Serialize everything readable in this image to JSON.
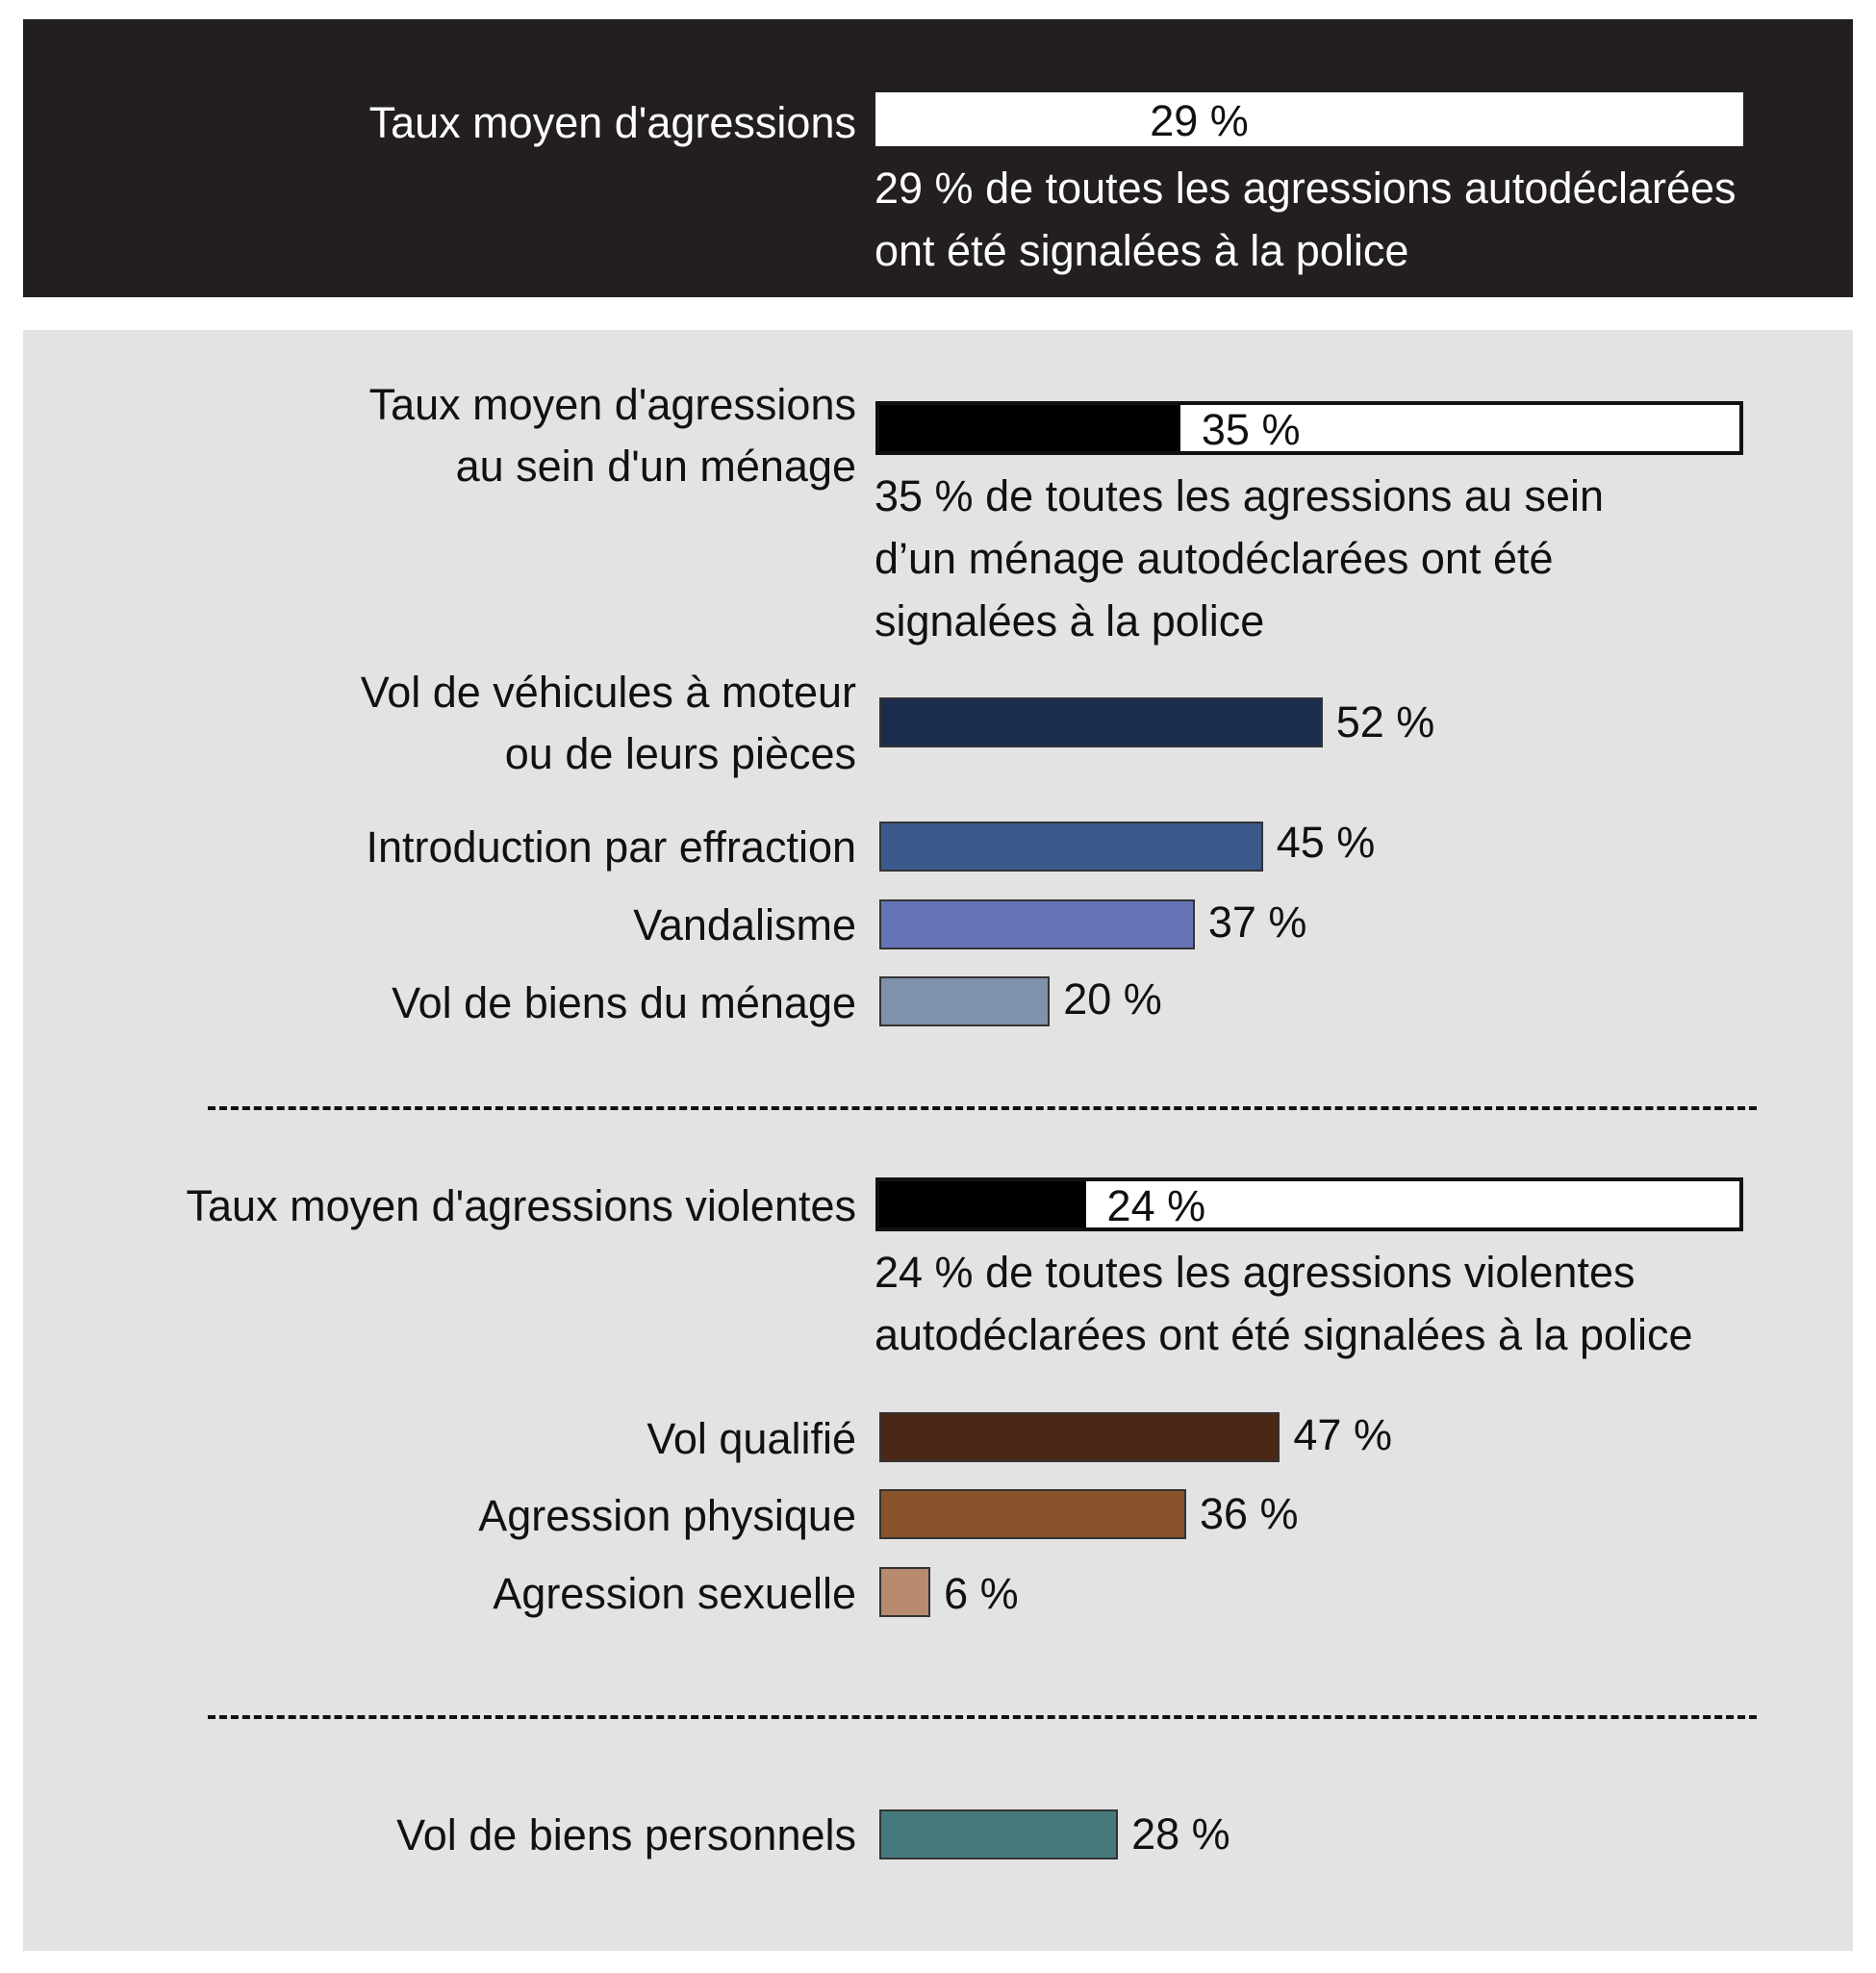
{
  "chart_data": {
    "type": "bar",
    "unit": "%",
    "sections": [
      {
        "average": {
          "label": "Taux moyen d'agressions",
          "value": 29,
          "value_label": "29 %",
          "note": [
            "29 % de toutes les agressions autodéclarées",
            "ont été signalées à la police"
          ]
        }
      },
      {
        "average": {
          "label": [
            "Taux moyen d'agressions",
            "au sein d'un ménage"
          ],
          "value": 35,
          "value_label": "35 %",
          "note": [
            "35 % de toutes les agressions au sein",
            "d’un ménage autodéclarées ont été",
            "signalées à la police"
          ]
        },
        "bars": [
          {
            "label": [
              "Vol de véhicules à moteur",
              "ou de leurs pièces"
            ],
            "value": 52,
            "value_label": "52 %",
            "color": "#1b2c4e"
          },
          {
            "label": "Introduction par effraction",
            "value": 45,
            "value_label": "45 %",
            "color": "#3b5a8c"
          },
          {
            "label": "Vandalisme",
            "value": 37,
            "value_label": "37 %",
            "color": "#6574b6"
          },
          {
            "label": "Vol de biens du ménage",
            "value": 20,
            "value_label": "20 %",
            "color": "#7f91ab"
          }
        ]
      },
      {
        "average": {
          "label": "Taux moyen d'agressions violentes",
          "value": 24,
          "value_label": "24 %",
          "note": [
            "24 % de toutes les agressions violentes",
            "autodéclarées ont été signalées à la police"
          ]
        },
        "bars": [
          {
            "label": "Vol qualifié",
            "value": 47,
            "value_label": "47 %",
            "color": "#4b2816"
          },
          {
            "label": "Agression physique",
            "value": 36,
            "value_label": "36 %",
            "color": "#88532a"
          },
          {
            "label": "Agression sexuelle",
            "value": 6,
            "value_label": "6 %",
            "color": "#b88b6f"
          }
        ]
      },
      {
        "bars": [
          {
            "label": "Vol de biens personnels",
            "value": 28,
            "value_label": "28 %",
            "color": "#45797b"
          }
        ]
      }
    ],
    "xlim": [
      0,
      100
    ],
    "grid": false,
    "legend": "none"
  }
}
